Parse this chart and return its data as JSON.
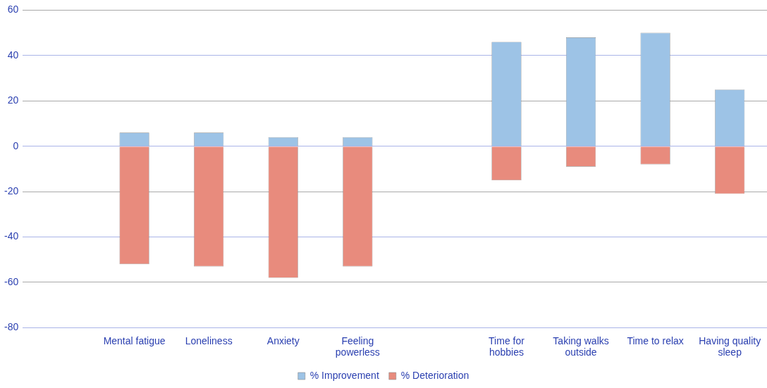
{
  "chart_data": {
    "type": "bar",
    "stacked": true,
    "categories": [
      null,
      "Mental fatigue",
      "Loneliness",
      "Anxiety",
      "Feeling powerless",
      null,
      "Time for hobbies",
      "Taking walks outside",
      "Time to relax",
      "Having quality sleep"
    ],
    "series": [
      {
        "name": "% Improvement",
        "color": "#9dc3e6",
        "values": [
          null,
          6,
          6,
          4,
          4,
          null,
          46,
          48,
          50,
          25
        ]
      },
      {
        "name": "% Deterioration",
        "color": "#e88b7d",
        "values": [
          null,
          -52,
          -53,
          -58,
          -53,
          null,
          -15,
          -9,
          -8,
          -21
        ]
      }
    ],
    "ylim": [
      -80,
      60
    ],
    "yticks": [
      -80,
      -60,
      -40,
      -20,
      0,
      20,
      40,
      60
    ],
    "grid": "y",
    "legend": "bottom"
  }
}
